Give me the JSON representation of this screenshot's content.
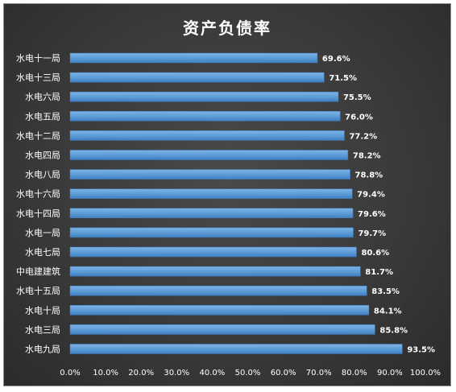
{
  "chart_data": {
    "type": "bar",
    "orientation": "horizontal",
    "title": "资产负债率",
    "categories": [
      "水电十一局",
      "水电十三局",
      "水电六局",
      "水电五局",
      "水电十二局",
      "水电四局",
      "水电八局",
      "水电十六局",
      "水电十四局",
      "水电一局",
      "水电七局",
      "中电建建筑",
      "水电十五局",
      "水电十局",
      "水电三局",
      "水电九局"
    ],
    "values": [
      69.6,
      71.5,
      75.5,
      76.0,
      77.2,
      78.2,
      78.8,
      79.4,
      79.6,
      79.7,
      80.6,
      81.7,
      83.5,
      84.1,
      85.8,
      93.5
    ],
    "value_labels": [
      "69.6%",
      "71.5%",
      "75.5%",
      "76.0%",
      "77.2%",
      "78.2%",
      "78.8%",
      "79.4%",
      "79.6%",
      "79.7%",
      "80.6%",
      "81.7%",
      "83.5%",
      "84.1%",
      "85.8%",
      "93.5%"
    ],
    "x_ticks": [
      "0.0%",
      "10.0%",
      "20.0%",
      "30.0%",
      "40.0%",
      "50.0%",
      "60.0%",
      "70.0%",
      "80.0%",
      "90.0%",
      "100.0%"
    ],
    "xlim": [
      0,
      100
    ],
    "xlabel": "",
    "ylabel": "",
    "grid": false,
    "colors": {
      "bar": "#5b9bd5",
      "bar_dark": "#3f7fc2",
      "background": "#3a3a3a",
      "text": "#ffffff"
    }
  }
}
